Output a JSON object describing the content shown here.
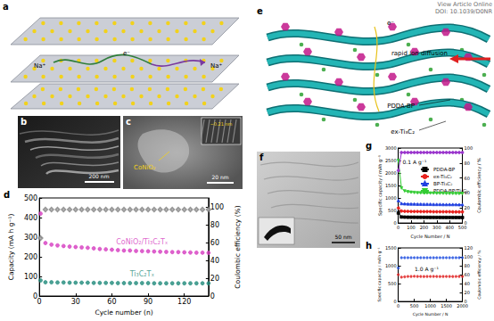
{
  "figure": {
    "header": {
      "lines": [
        "View Article Online",
        "DOI: 10.1039/D0NR"
      ]
    },
    "panels": {
      "a": {
        "label": "a",
        "ion_left": "Na⁺",
        "electron": "e⁻",
        "ion_right": "Na⁺"
      },
      "b": {
        "label": "b",
        "scale_bar": "200 nm"
      },
      "c": {
        "label": "c",
        "particle": "CoNiO₂",
        "scale_bar": "20 nm",
        "lattice": "~0.21 nm"
      },
      "e": {
        "label": "e",
        "electron": "e⁻",
        "arrow_text": "rapid ion diffusion",
        "layer_top": "PDDA-BP",
        "layer_bottom": "ex-Ti₃C₂"
      },
      "f": {
        "label": "f",
        "scale_bar": "50 nm"
      }
    }
  },
  "chart_data": [
    {
      "panel": "d",
      "type": "scatter",
      "grid": false,
      "x_label": "Cycle number (n)",
      "y_label": "Capacity (mA h g⁻¹)",
      "y2_label": "Coulombic efficiency (%)",
      "xlim": [
        0,
        140
      ],
      "xticks": [
        0,
        30,
        60,
        90,
        120
      ],
      "ylim": [
        0,
        500
      ],
      "yticks": [
        0,
        100,
        200,
        300,
        400,
        500
      ],
      "y2lim": [
        0,
        110
      ],
      "y2ticks": [
        0,
        20,
        40,
        60,
        80,
        100
      ],
      "x": [
        1,
        5,
        10,
        15,
        20,
        25,
        30,
        35,
        40,
        45,
        50,
        55,
        60,
        65,
        70,
        75,
        80,
        85,
        90,
        95,
        100,
        105,
        110,
        115,
        120,
        125,
        130,
        135,
        140
      ],
      "series": [
        {
          "name": "CoNiO₂/Ti₃C₂Tₓ",
          "color": "#d63cc0",
          "marker": "circle",
          "line_style": "none",
          "values": [
            420,
            270,
            262,
            258,
            255,
            252,
            250,
            248,
            246,
            243,
            240,
            238,
            236,
            234,
            232,
            232,
            230,
            229,
            228,
            227,
            226,
            225,
            224,
            224,
            223,
            222,
            221,
            221,
            220
          ]
        },
        {
          "name": "Ti₃C₂Tₓ",
          "color": "#1f8a7a",
          "marker": "circle",
          "line_style": "none",
          "values": [
            80,
            70,
            70,
            69,
            69,
            68,
            68,
            68,
            68,
            67,
            67,
            67,
            67,
            66,
            66,
            66,
            66,
            66,
            66,
            65,
            65,
            65,
            65,
            65,
            65,
            65,
            65,
            65,
            65
          ]
        },
        {
          "color": "#808080",
          "marker": "open_diamond",
          "line_style": "none",
          "axis": "y2",
          "values": [
            65,
            97,
            97,
            97,
            97,
            97,
            97,
            97,
            97,
            97,
            97,
            97,
            97,
            97,
            97,
            97,
            97,
            97,
            97,
            97,
            97,
            97,
            97,
            97,
            97,
            97,
            97,
            97,
            97
          ]
        }
      ]
    },
    {
      "panel": "g",
      "type": "line",
      "grid": false,
      "legend": "upper right",
      "annotations": [
        "0.1 A g⁻¹"
      ],
      "x_label": "Cycle Number / N",
      "y_label": "Specific capacity / mAh g⁻¹",
      "y2_label": "Coulombic efficiency / %",
      "xlim": [
        0,
        500
      ],
      "xticks": [
        0,
        100,
        200,
        300,
        400,
        500
      ],
      "ylim": [
        0,
        3000
      ],
      "yticks": [
        0,
        500,
        1000,
        1500,
        2000,
        2500,
        3000
      ],
      "y2lim": [
        0,
        100
      ],
      "y2ticks": [
        0,
        20,
        40,
        60,
        80,
        100
      ],
      "x": [
        1,
        25,
        50,
        75,
        100,
        125,
        150,
        175,
        200,
        225,
        250,
        275,
        300,
        325,
        350,
        375,
        400,
        425,
        450,
        475,
        500
      ],
      "series": [
        {
          "name": "PDDA-BP",
          "color": "#000000",
          "marker": "square",
          "line_style": "solid",
          "values": [
            400,
            240,
            235,
            232,
            230,
            230,
            228,
            228,
            226,
            226,
            225,
            225,
            224,
            224,
            223,
            223,
            222,
            222,
            222,
            221,
            221
          ]
        },
        {
          "name": "ex-Ti₃C₂",
          "color": "#e8211d",
          "marker": "circle",
          "line_style": "solid",
          "values": [
            600,
            480,
            470,
            465,
            460,
            460,
            460,
            455,
            455,
            455,
            455,
            450,
            450,
            450,
            450,
            450,
            450,
            445,
            445,
            445,
            445
          ]
        },
        {
          "name": "BP-Ti₃C₂",
          "color": "#1f3fe0",
          "marker": "triangle",
          "line_style": "solid",
          "values": [
            900,
            780,
            770,
            765,
            760,
            760,
            755,
            755,
            750,
            750,
            750,
            745,
            745,
            745,
            740,
            740,
            740,
            740,
            740,
            735,
            735
          ]
        },
        {
          "name": "PDDA-BP/Ti₃C₂",
          "color": "#33cc33",
          "marker": "triangle_down",
          "line_style": "solid",
          "values": [
            2500,
            1400,
            1280,
            1250,
            1230,
            1220,
            1210,
            1205,
            1200,
            1200,
            1195,
            1195,
            1190,
            1190,
            1190,
            1185,
            1185,
            1185,
            1180,
            1180,
            1180
          ]
        },
        {
          "color": "#9933cc",
          "marker": "circle",
          "line_style": "solid",
          "axis": "y2",
          "values": [
            70,
            94,
            94,
            94,
            94,
            94,
            94,
            94,
            94,
            94,
            94,
            94,
            94,
            94,
            94,
            94,
            94,
            94,
            94,
            94,
            94
          ]
        }
      ]
    },
    {
      "panel": "h",
      "type": "scatter",
      "grid": false,
      "annotations": [
        "1.0 A g⁻¹"
      ],
      "x_label": "Cycle Number / N",
      "y_label": "Specific capacity / mAh g⁻¹",
      "y2_label": "Coulombic efficiency / %",
      "xlim": [
        0,
        2000
      ],
      "xticks": [
        0,
        500,
        1000,
        1500,
        2000
      ],
      "ylim": [
        0,
        1500
      ],
      "yticks": [
        0,
        500,
        1000,
        1500
      ],
      "y2lim": [
        0,
        120
      ],
      "y2ticks": [
        0,
        20,
        40,
        60,
        80,
        100,
        120
      ],
      "x": [
        1,
        100,
        200,
        300,
        400,
        500,
        600,
        700,
        800,
        900,
        1000,
        1100,
        1200,
        1300,
        1400,
        1500,
        1600,
        1700,
        1800,
        1900,
        2000
      ],
      "series": [
        {
          "color": "#e02020",
          "marker": "circle",
          "line_style": "none",
          "values": [
            750,
            680,
            690,
            700,
            700,
            705,
            700,
            700,
            698,
            700,
            700,
            702,
            700,
            698,
            700,
            700,
            700,
            698,
            700,
            700,
            700
          ]
        },
        {
          "color": "#1f4fe0",
          "marker": "circle",
          "line_style": "none",
          "axis": "y2",
          "values": [
            75,
            98,
            98,
            98,
            98,
            98,
            98,
            98,
            98,
            98,
            98,
            98,
            98,
            98,
            98,
            98,
            98,
            98,
            98,
            98,
            98
          ]
        }
      ]
    }
  ]
}
